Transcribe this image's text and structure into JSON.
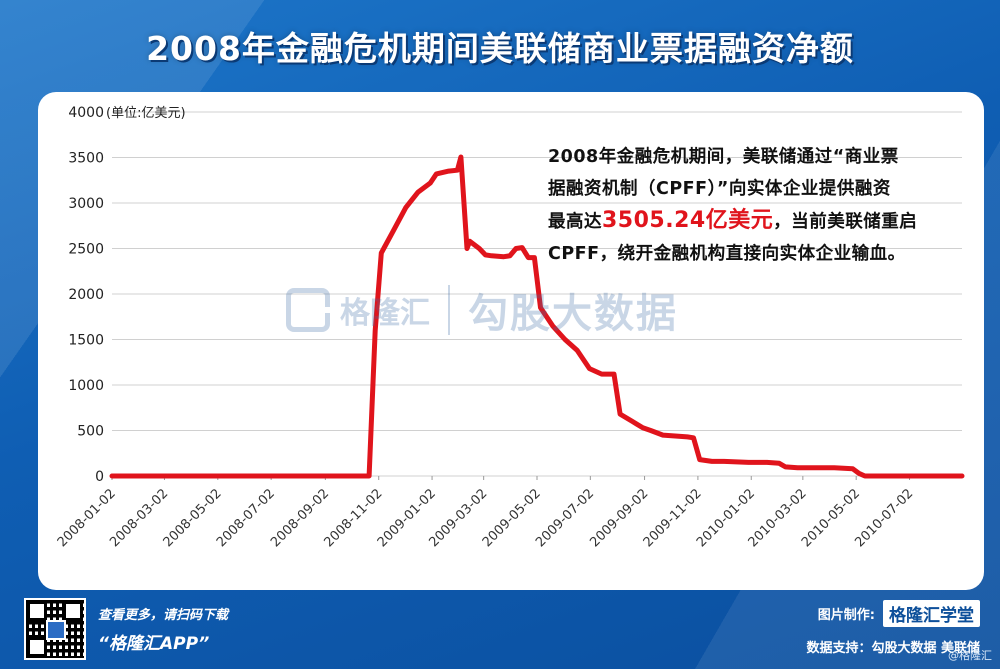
{
  "title": "2008年金融危机期间美联储商业票据融资净额",
  "unit_label": "(单位:亿美元)",
  "annotation": {
    "line1": "2008年金融危机期间，美联储通过“商业票",
    "line2": "据融资机制（CPFF）”向实体企业提供融资",
    "line3_pre": "最高达",
    "line3_highlight": "3505.24亿美元",
    "line3_post": "，当前美联储重启",
    "line4": "CPFF，绕开金融机构直接向实体企业输血。"
  },
  "watermark": {
    "name": "格隆汇",
    "second": "勾股大数据"
  },
  "footer": {
    "scan_text": "查看更多，请扫码下载",
    "app_text": "“格隆汇APP”",
    "made_by_label": "图片制作:",
    "brand": "格隆汇学堂",
    "data_support": "数据支持：勾股大数据  美联储",
    "corner": "@格隆汇"
  },
  "colors": {
    "line": "#e0141c",
    "background": "#0f5eb3",
    "grid": "#d0d0d0"
  },
  "chart_data": {
    "type": "line",
    "title": "2008年金融危机期间美联储商业票据融资净额",
    "ylabel": "(单位:亿美元)",
    "xlabel": "",
    "ylim": [
      0,
      4000
    ],
    "yticks": [
      0,
      500,
      1000,
      1500,
      2000,
      2500,
      3000,
      3500,
      4000
    ],
    "xlim": [
      "2008-01-02",
      "2010-08-31"
    ],
    "xticks": [
      "2008-01-02",
      "2008-03-02",
      "2008-05-02",
      "2008-07-02",
      "2008-09-02",
      "2008-11-02",
      "2009-01-02",
      "2009-03-02",
      "2009-05-02",
      "2009-07-02",
      "2009-09-02",
      "2009-11-02",
      "2010-01-02",
      "2010-03-02",
      "2010-05-02",
      "2010-07-02"
    ],
    "grid": true,
    "series": [
      {
        "values": [
          [
            "2008-01-02",
            0
          ],
          [
            "2008-10-22",
            0
          ],
          [
            "2008-10-29",
            1600
          ],
          [
            "2008-11-05",
            2450
          ],
          [
            "2008-11-19",
            2700
          ],
          [
            "2008-12-03",
            2950
          ],
          [
            "2008-12-17",
            3120
          ],
          [
            "2008-12-31",
            3220
          ],
          [
            "2009-01-07",
            3320
          ],
          [
            "2009-01-21",
            3350
          ],
          [
            "2009-01-31",
            3360
          ],
          [
            "2009-02-04",
            3505
          ],
          [
            "2009-02-11",
            2500
          ],
          [
            "2009-02-14",
            2580
          ],
          [
            "2009-02-25",
            2500
          ],
          [
            "2009-03-04",
            2430
          ],
          [
            "2009-03-11",
            2420
          ],
          [
            "2009-03-25",
            2410
          ],
          [
            "2009-04-01",
            2420
          ],
          [
            "2009-04-08",
            2500
          ],
          [
            "2009-04-15",
            2510
          ],
          [
            "2009-04-22",
            2400
          ],
          [
            "2009-04-29",
            2400
          ],
          [
            "2009-05-06",
            1850
          ],
          [
            "2009-05-20",
            1650
          ],
          [
            "2009-06-03",
            1500
          ],
          [
            "2009-06-17",
            1380
          ],
          [
            "2009-07-01",
            1180
          ],
          [
            "2009-07-15",
            1120
          ],
          [
            "2009-07-29",
            1120
          ],
          [
            "2009-08-05",
            680
          ],
          [
            "2009-08-19",
            600
          ],
          [
            "2009-08-31",
            530
          ],
          [
            "2009-09-09",
            500
          ],
          [
            "2009-09-23",
            450
          ],
          [
            "2009-10-07",
            440
          ],
          [
            "2009-10-21",
            430
          ],
          [
            "2009-10-28",
            420
          ],
          [
            "2009-11-04",
            180
          ],
          [
            "2009-11-18",
            160
          ],
          [
            "2009-12-02",
            160
          ],
          [
            "2009-12-30",
            150
          ],
          [
            "2010-01-20",
            150
          ],
          [
            "2010-02-03",
            140
          ],
          [
            "2010-02-10",
            100
          ],
          [
            "2010-02-24",
            90
          ],
          [
            "2010-04-07",
            90
          ],
          [
            "2010-04-28",
            80
          ],
          [
            "2010-05-05",
            30
          ],
          [
            "2010-05-12",
            0
          ],
          [
            "2010-08-31",
            0
          ]
        ]
      }
    ]
  }
}
